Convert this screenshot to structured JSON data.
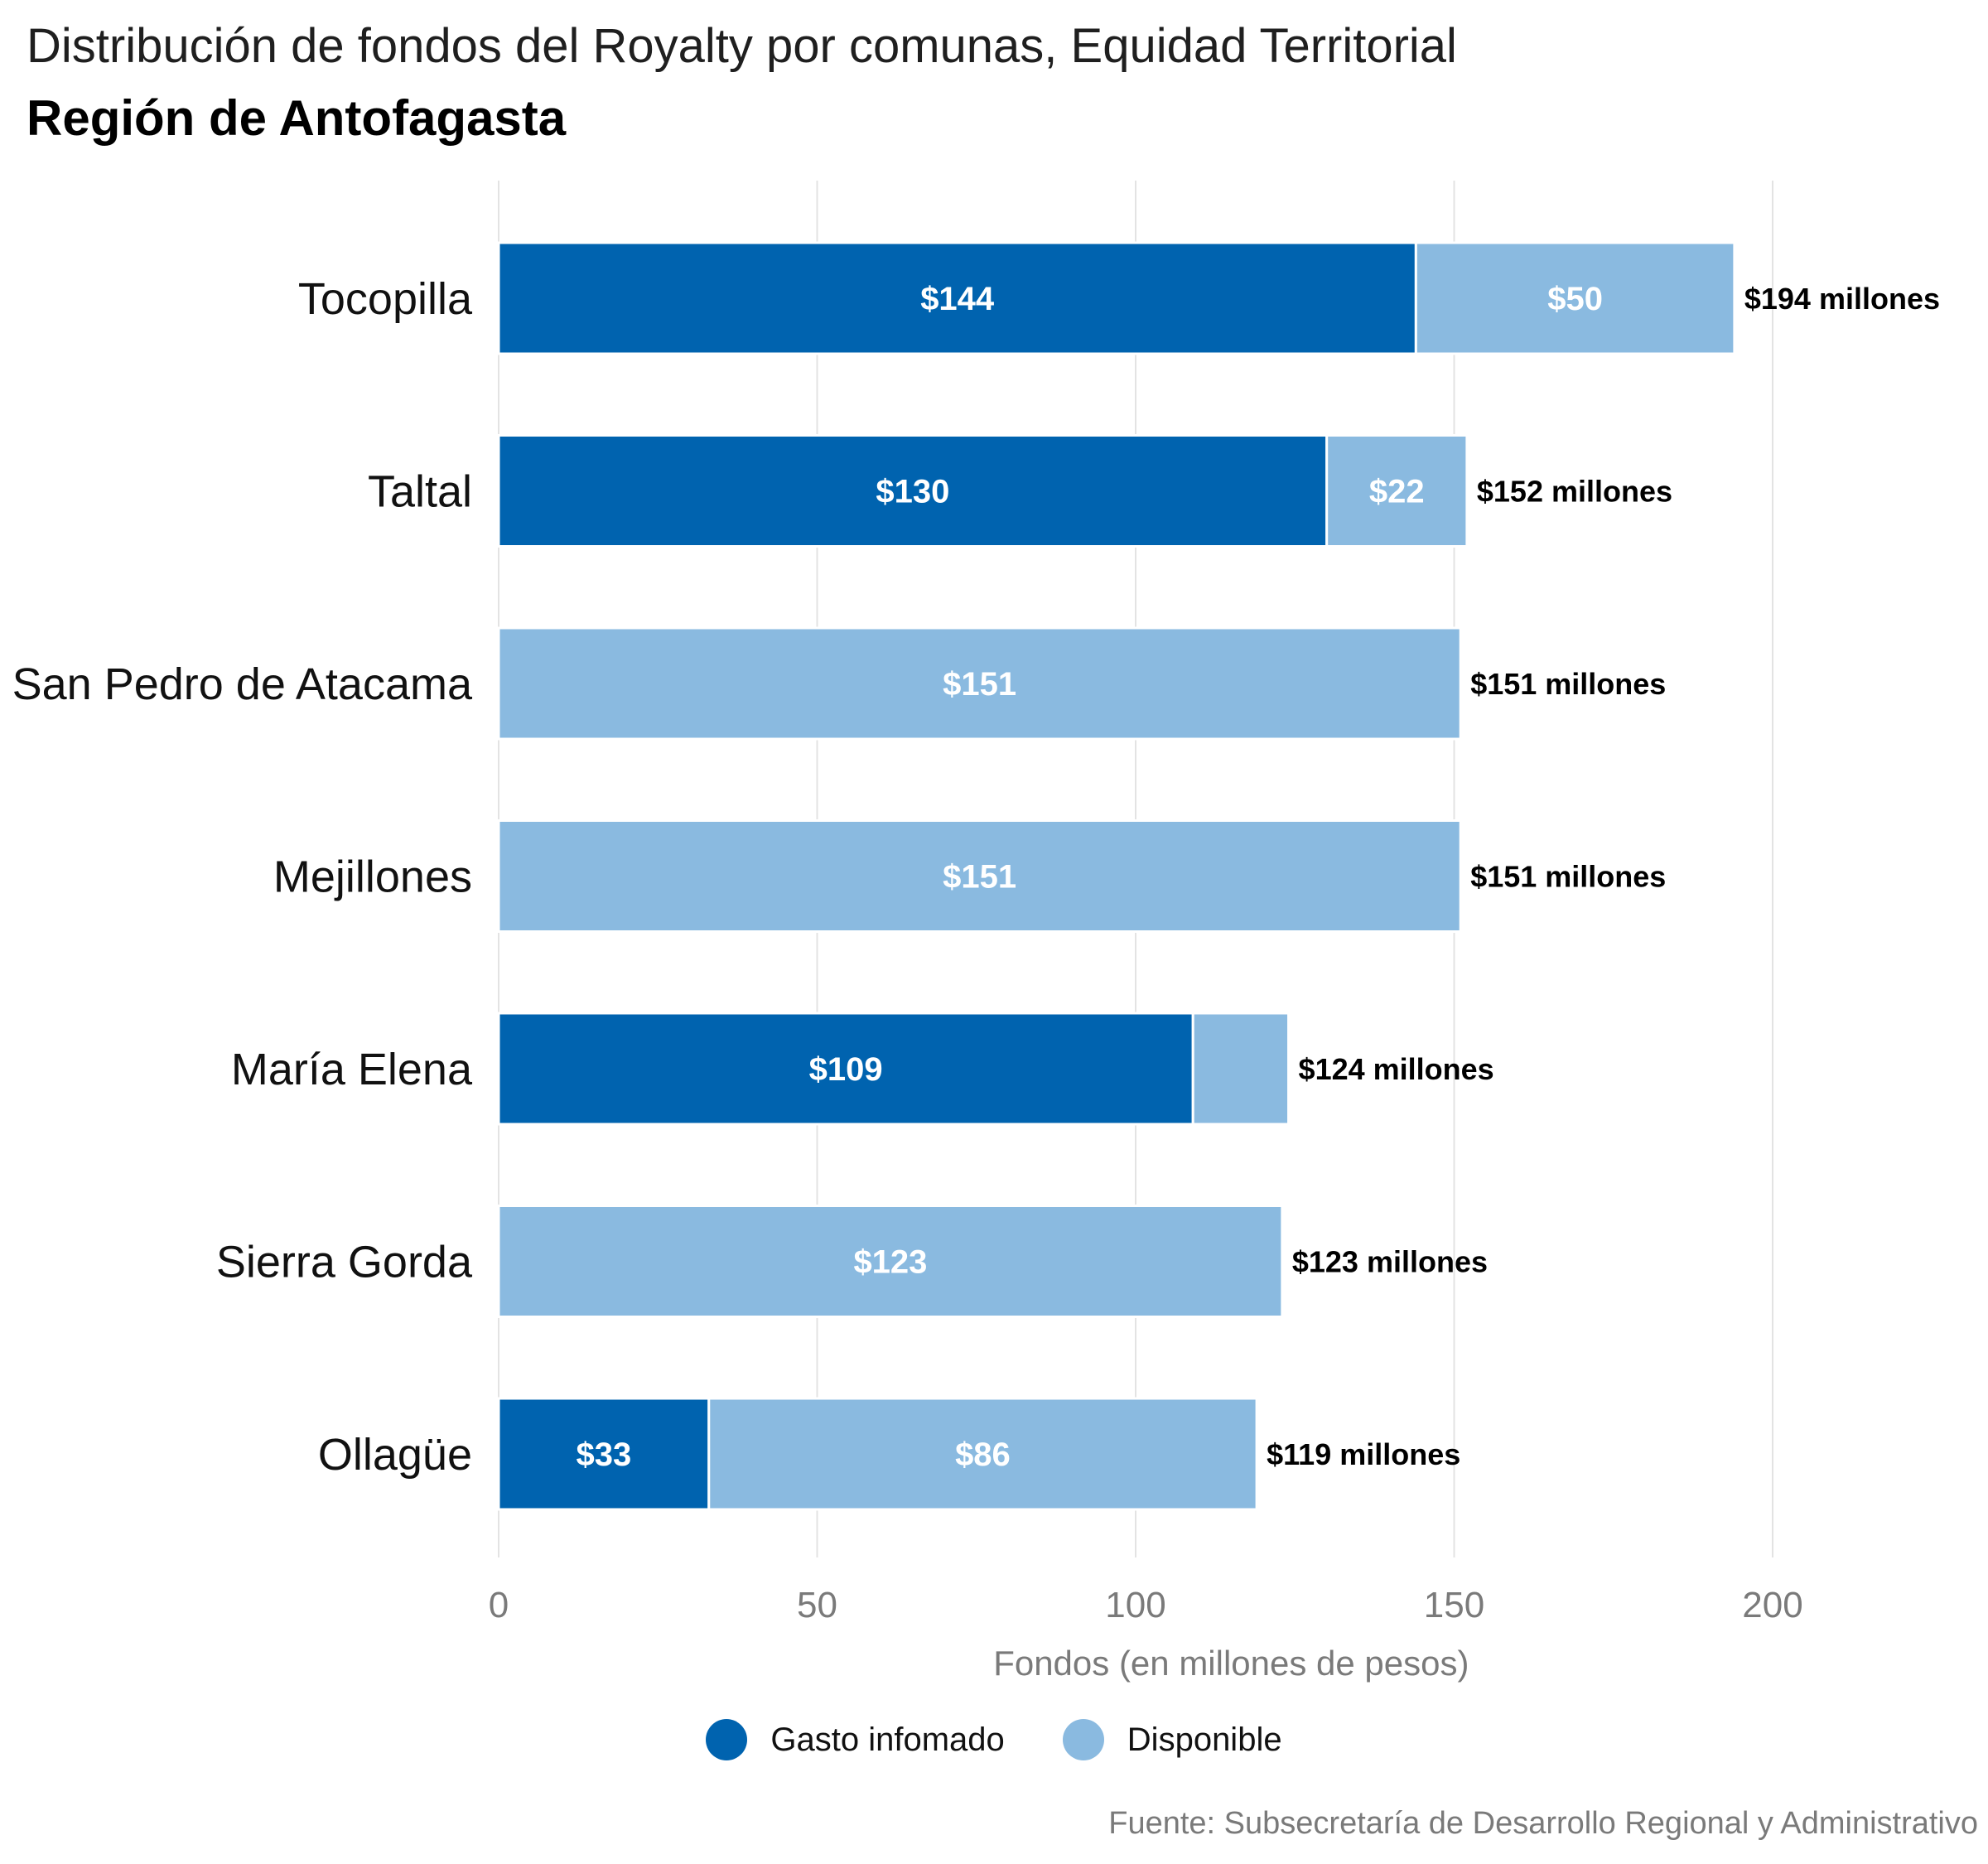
{
  "title": "Distribución de fondos del Royalty por comunas, Equidad Territorial",
  "subtitle": "Región de Antofagasta",
  "source": "Fuente: Subsecretaría de Desarrollo Regional y Administrativo",
  "colors": {
    "gasto": "#0063AF",
    "disponible": "#8ABAE0",
    "grid": "#e3e3e3",
    "axis_text": "#7a7a7a"
  },
  "legend": [
    {
      "label": "Gasto infomado",
      "color": "#0063AF"
    },
    {
      "label": "Disponible",
      "color": "#8ABAE0"
    }
  ],
  "chart_data": {
    "type": "bar",
    "orientation": "horizontal",
    "stacked": true,
    "categories": [
      "Tocopilla",
      "Taltal",
      "San Pedro de Atacama",
      "Mejillones",
      "María Elena",
      "Sierra Gorda",
      "Ollagüe"
    ],
    "series": [
      {
        "name": "Gasto infomado",
        "values": [
          144,
          130,
          0,
          0,
          109,
          0,
          33
        ],
        "labels": [
          "$144",
          "$130",
          "",
          "",
          "$109",
          "",
          "$33"
        ]
      },
      {
        "name": "Disponible",
        "values": [
          50,
          22,
          151,
          151,
          15,
          123,
          86
        ],
        "labels": [
          "$50",
          "$22",
          "$151",
          "$151",
          "",
          "$123",
          "$86"
        ]
      }
    ],
    "totals": [
      "$194 millones",
      "$152 millones",
      "$151 millones",
      "$151 millones",
      "$124 millones",
      "$123 millones",
      "$119 millones"
    ],
    "xlabel": "Fondos (en millones de pesos)",
    "ylabel": "",
    "xlim": [
      0,
      200
    ],
    "xticks": [
      0,
      50,
      100,
      150,
      200
    ],
    "grid": true,
    "legend_position": "bottom"
  }
}
